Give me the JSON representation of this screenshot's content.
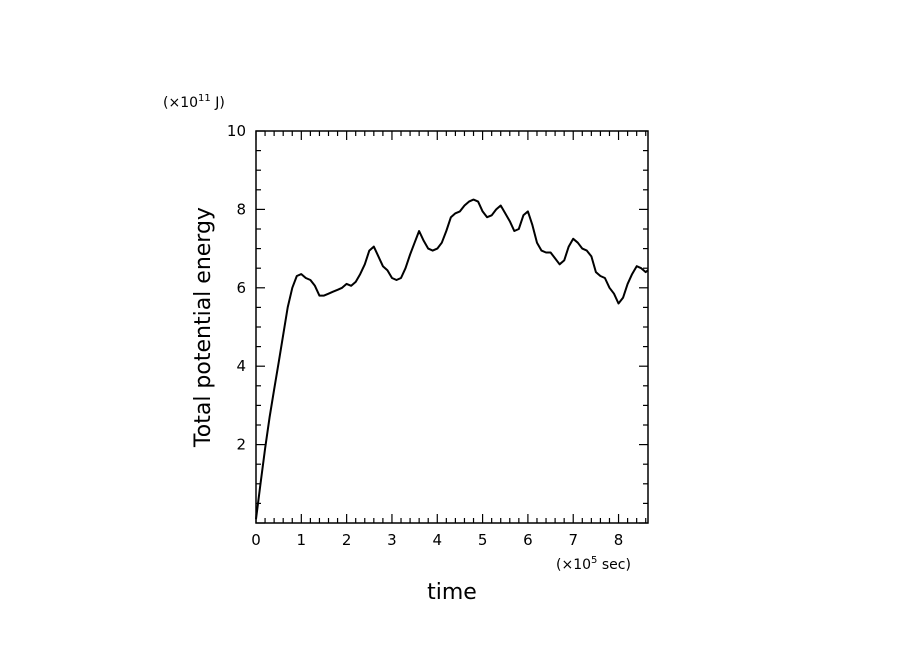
{
  "chart_data": {
    "type": "line",
    "title": "",
    "xlabel": "time",
    "ylabel": "Total potential energy",
    "x_unit": {
      "prefix": "(×10",
      "exponent": "5",
      "suffix": " sec)"
    },
    "y_unit": {
      "prefix": "(×10",
      "exponent": "11",
      "suffix": " J)"
    },
    "xlim": [
      0,
      8.65
    ],
    "ylim": [
      0,
      10
    ],
    "x_ticks": [
      0,
      1,
      2,
      3,
      4,
      5,
      6,
      7,
      8
    ],
    "x_tick_labels": [
      "0",
      "1",
      "2",
      "3",
      "4",
      "5",
      "6",
      "7",
      "8"
    ],
    "y_ticks": [
      2,
      4,
      6,
      8,
      10
    ],
    "y_tick_labels": [
      "2",
      "4",
      "6",
      "8",
      "10"
    ],
    "grid": false,
    "legend": "none",
    "line_color": "#000000",
    "series": [
      {
        "x": [
          0,
          0.1,
          0.2,
          0.3,
          0.4,
          0.5,
          0.6,
          0.7,
          0.8,
          0.9,
          1.0,
          1.1,
          1.2,
          1.3,
          1.4,
          1.5,
          1.6,
          1.7,
          1.8,
          1.9,
          2.0,
          2.1,
          2.2,
          2.3,
          2.4,
          2.5,
          2.6,
          2.7,
          2.8,
          2.9,
          3.0,
          3.1,
          3.2,
          3.3,
          3.4,
          3.5,
          3.6,
          3.7,
          3.8,
          3.9,
          4.0,
          4.1,
          4.2,
          4.3,
          4.4,
          4.5,
          4.6,
          4.7,
          4.8,
          4.9,
          5.0,
          5.1,
          5.2,
          5.3,
          5.4,
          5.5,
          5.6,
          5.7,
          5.8,
          5.9,
          6.0,
          6.1,
          6.2,
          6.3,
          6.4,
          6.5,
          6.6,
          6.7,
          6.8,
          6.9,
          7.0,
          7.1,
          7.2,
          7.3,
          7.4,
          7.5,
          7.6,
          7.7,
          7.8,
          7.9,
          8.0,
          8.1,
          8.2,
          8.3,
          8.4,
          8.5,
          8.6,
          8.65
        ],
        "y": [
          0.1,
          1.0,
          1.9,
          2.7,
          3.4,
          4.1,
          4.8,
          5.5,
          6.0,
          6.3,
          6.35,
          6.25,
          6.2,
          6.05,
          5.8,
          5.8,
          5.85,
          5.9,
          5.95,
          6.0,
          6.1,
          6.05,
          6.15,
          6.35,
          6.6,
          6.95,
          7.05,
          6.8,
          6.55,
          6.45,
          6.25,
          6.2,
          6.25,
          6.5,
          6.85,
          7.15,
          7.45,
          7.2,
          7.0,
          6.95,
          7.0,
          7.15,
          7.45,
          7.8,
          7.9,
          7.95,
          8.1,
          8.2,
          8.25,
          8.2,
          7.95,
          7.8,
          7.85,
          8.0,
          8.1,
          7.9,
          7.7,
          7.45,
          7.5,
          7.85,
          7.95,
          7.6,
          7.15,
          6.95,
          6.9,
          6.9,
          6.75,
          6.6,
          6.7,
          7.05,
          7.25,
          7.15,
          7.0,
          6.95,
          6.8,
          6.4,
          6.3,
          6.25,
          6.0,
          5.85,
          5.6,
          5.75,
          6.1,
          6.35,
          6.55,
          6.5,
          6.4,
          6.45
        ]
      }
    ]
  }
}
